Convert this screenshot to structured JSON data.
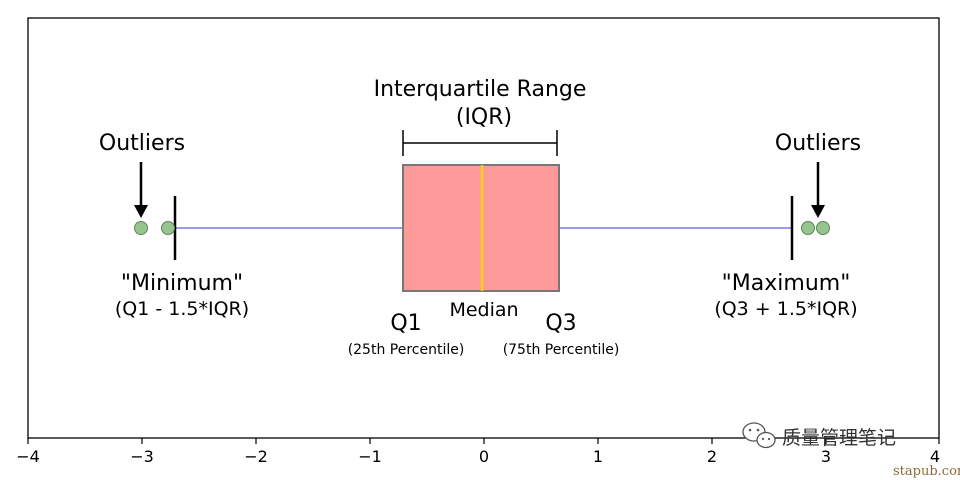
{
  "diagram": {
    "iqr_title": "Interquartile Range",
    "iqr_sub": "(IQR)",
    "outliers_left": "Outliers",
    "outliers_right": "Outliers",
    "minimum_label": "\"Minimum\"",
    "minimum_formula": "(Q1 - 1.5*IQR)",
    "maximum_label": "\"Maximum\"",
    "maximum_formula": "(Q3 + 1.5*IQR)",
    "q1_label": "Q1",
    "q1_sub": "(25th Percentile)",
    "q3_label": "Q3",
    "q3_sub": "(75th Percentile)",
    "median_label": "Median"
  },
  "axis": {
    "ticks": [
      "−4",
      "−3",
      "−2",
      "−1",
      "0",
      "1",
      "2",
      "3",
      "4"
    ]
  },
  "watermark": {
    "text": "质量管理笔记",
    "url": "stapub.com"
  },
  "colors": {
    "box_fill": "#ff9a9a",
    "box_stroke": "#777777",
    "median": "#f5d21a",
    "whisker": "#9a9aee",
    "outlier_fill": "#97c48e",
    "outlier_stroke": "#5a8a55"
  }
}
